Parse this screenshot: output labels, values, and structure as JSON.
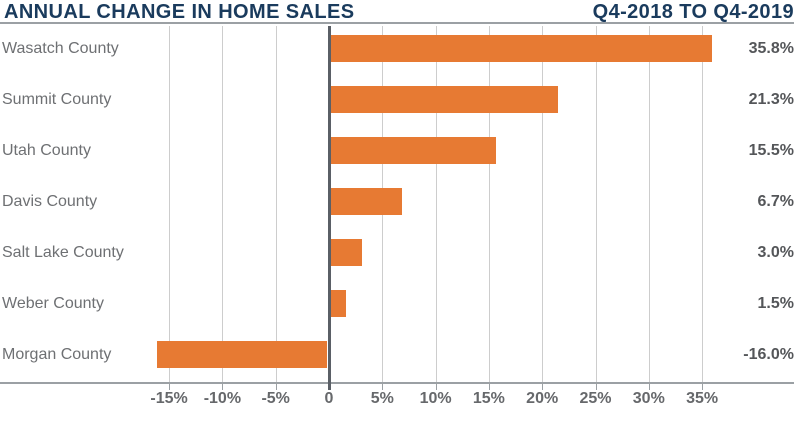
{
  "header": {
    "title": "ANNUAL CHANGE IN HOME SALES",
    "period": "Q4-2018 TO Q4-2019"
  },
  "chart_data": {
    "type": "bar",
    "orientation": "horizontal",
    "title": "ANNUAL CHANGE IN HOME SALES",
    "subtitle": "Q4-2018 TO Q4-2019",
    "categories": [
      "Wasatch County",
      "Summit County",
      "Utah County",
      "Davis County",
      "Salt Lake County",
      "Weber County",
      "Morgan County"
    ],
    "values": [
      35.8,
      21.3,
      15.5,
      6.7,
      3.0,
      1.5,
      -16.0
    ],
    "value_labels": [
      "35.8%",
      "21.3%",
      "15.5%",
      "6.7%",
      "3.0%",
      "1.5%",
      "-16.0%"
    ],
    "xlabel": "",
    "ylabel": "",
    "xlim": [
      -15,
      35
    ],
    "x_ticks": [
      -15,
      -10,
      -5,
      0,
      5,
      10,
      15,
      20,
      25,
      30,
      35
    ],
    "x_tick_labels": [
      "-15%",
      "-10%",
      "-5%",
      "0",
      "5%",
      "10%",
      "15%",
      "20%",
      "25%",
      "30%",
      "35%"
    ],
    "grid": true,
    "legend": "none"
  },
  "colors": {
    "navy": "#1A3B5D",
    "bar_orange": "#E77A33",
    "gridline": "#CDCDCD",
    "zero_axis": "#5A5F66",
    "rule_gray": "#9BA0A4",
    "category_label": "#6E7073",
    "value_label": "#545659",
    "tick_label": "#66686B"
  }
}
